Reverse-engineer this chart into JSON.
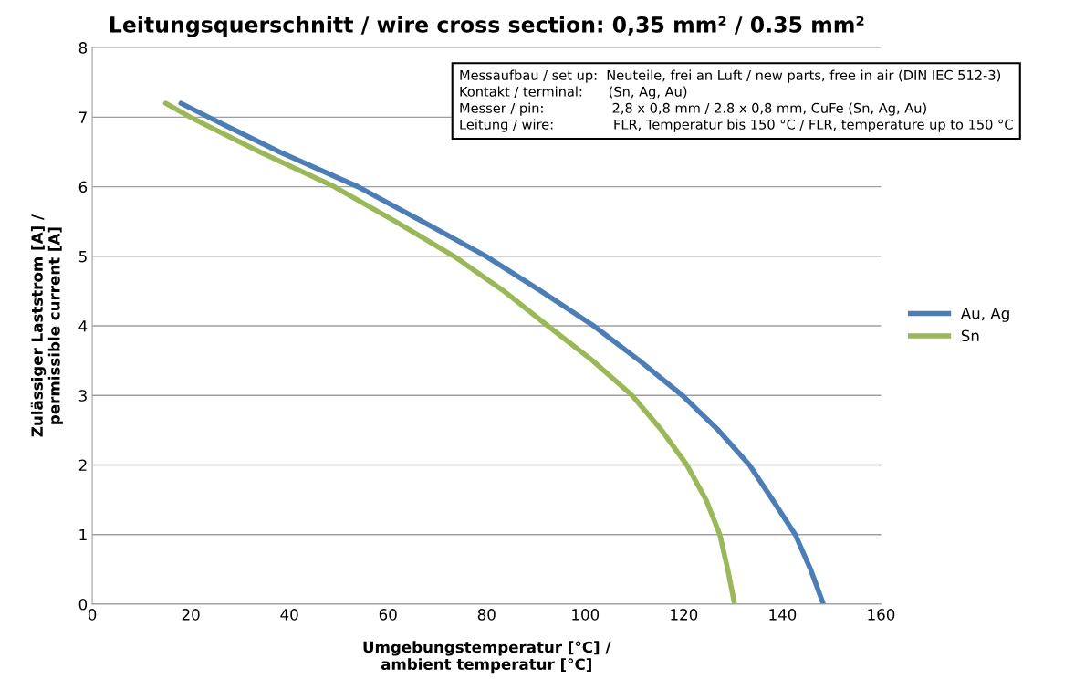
{
  "chart_data": {
    "type": "line",
    "title": "Leitungsquerschnitt / wire cross section: 0,35 mm² / 0.35 mm²",
    "xlabel": "Umgebungstemperatur [°C] /\nambient temperatur [°C]",
    "ylabel": "Zulässiger Laststrom [A] /\npermissible current [A]",
    "xlim": [
      0,
      160
    ],
    "xticks": [
      0,
      20,
      40,
      60,
      80,
      100,
      120,
      140,
      160
    ],
    "ylim": [
      0,
      8
    ],
    "yticks": [
      0,
      1,
      2,
      3,
      4,
      5,
      6,
      7,
      8
    ],
    "grid": "y",
    "legend": "right",
    "marker": "none",
    "line_style": "solid",
    "series": [
      {
        "name": "Au, Ag",
        "color": "#4a7ebb",
        "x": [
          18.0,
          23.6,
          38,
          53.9,
          67,
          79.9,
          91,
          101.7,
          111,
          119.7,
          127,
          133.3,
          138,
          142.6,
          145.7,
          148.3
        ],
        "values": [
          7.2,
          7.0,
          6.5,
          6.0,
          5.5,
          5.0,
          4.5,
          4.0,
          3.5,
          3.0,
          2.5,
          2.0,
          1.5,
          1.0,
          0.5,
          0
        ]
      },
      {
        "name": "Sn",
        "color": "#98b954",
        "x": [
          14.9,
          19.9,
          34,
          49.1,
          61.5,
          73.4,
          83.5,
          92.4,
          101.5,
          109.5,
          115.5,
          120.6,
          124.5,
          127.3,
          128.9,
          130.3
        ],
        "values": [
          7.2,
          7.0,
          6.5,
          6.0,
          5.5,
          5.0,
          4.5,
          4.0,
          3.5,
          3.0,
          2.5,
          2.0,
          1.5,
          1.0,
          0.5,
          0
        ]
      }
    ],
    "annotations": [
      "Messaufbau / set up:  Neuteile, frei an Luft / new parts, free in air (DIN IEC 512-3)",
      "Kontakt / terminal:      (Sn, Ag, Au)",
      "Messer / pin:                2,8 x 0,8 mm / 2.8 x 0,8 mm, CuFe (Sn, Ag, Au)",
      "Leitung / wire:              FLR, Temperatur bis 150 °C / FLR, temperature up to 150 °C"
    ]
  }
}
